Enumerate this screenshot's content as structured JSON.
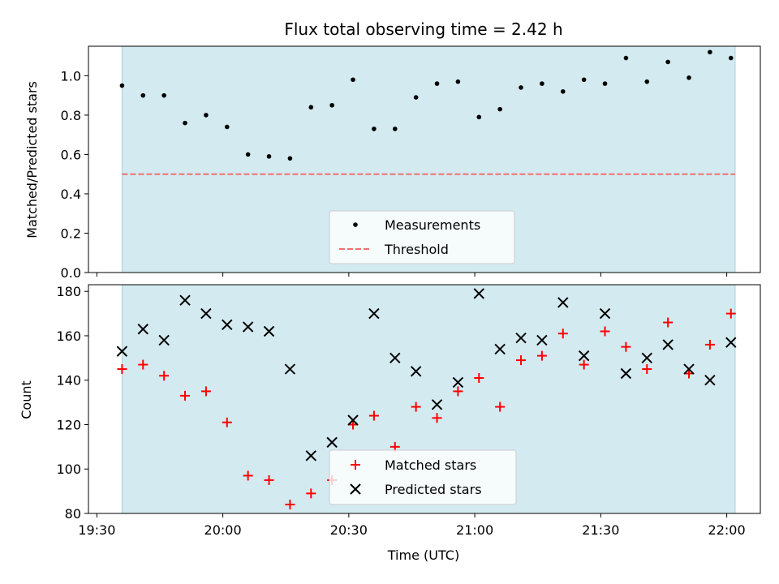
{
  "chart_data": [
    {
      "type": "scatter",
      "panel": "top",
      "title": "Flux total observing time = 2.42 h",
      "ylabel": "Matched/Predicted stars",
      "ylim": [
        0,
        1.15
      ],
      "yticks": [
        "0.0",
        "0.2",
        "0.4",
        "0.6",
        "0.8",
        "1.0"
      ],
      "shaded_x_range": [
        "19:36",
        "22:02"
      ],
      "shade_color": "#d3eaf0",
      "threshold": {
        "name": "Threshold",
        "value": 0.5,
        "color": "#f07070"
      },
      "legend_placement": "lower-center",
      "series": [
        {
          "name": "Measurements",
          "color": "#000000",
          "marker": "dot",
          "x": [
            "19:36",
            "19:41",
            "19:46",
            "19:51",
            "19:56",
            "20:01",
            "20:06",
            "20:11",
            "20:16",
            "20:21",
            "20:26",
            "20:31",
            "20:36",
            "20:41",
            "20:46",
            "20:51",
            "20:56",
            "21:01",
            "21:06",
            "21:11",
            "21:16",
            "21:21",
            "21:26",
            "21:31",
            "21:36",
            "21:41",
            "21:46",
            "21:51",
            "21:56",
            "22:01"
          ],
          "y": [
            0.95,
            0.9,
            0.9,
            0.76,
            0.8,
            0.74,
            0.6,
            0.59,
            0.58,
            0.84,
            0.85,
            0.98,
            0.73,
            0.73,
            0.89,
            0.96,
            0.97,
            0.79,
            0.83,
            0.94,
            0.96,
            0.92,
            0.98,
            0.96,
            1.09,
            0.97,
            1.07,
            0.99,
            1.12,
            1.09
          ]
        }
      ]
    },
    {
      "type": "scatter",
      "panel": "bottom",
      "xlabel": "Time (UTC)",
      "ylabel": "Count",
      "ylim": [
        80,
        183
      ],
      "yticks": [
        "80",
        "100",
        "120",
        "140",
        "160",
        "180"
      ],
      "xticks": [
        "19:30",
        "20:00",
        "20:30",
        "21:00",
        "21:30",
        "22:00"
      ],
      "xlim": [
        "19:28",
        "22:08"
      ],
      "shaded_x_range": [
        "19:36",
        "22:02"
      ],
      "legend_placement": "lower-center",
      "series": [
        {
          "name": "Matched stars",
          "color": "#ff0000",
          "marker": "plus",
          "x": [
            "19:36",
            "19:41",
            "19:46",
            "19:51",
            "19:56",
            "20:01",
            "20:06",
            "20:11",
            "20:16",
            "20:21",
            "20:26",
            "20:31",
            "20:36",
            "20:41",
            "20:46",
            "20:51",
            "20:56",
            "21:01",
            "21:06",
            "21:11",
            "21:16",
            "21:21",
            "21:26",
            "21:31",
            "21:36",
            "21:41",
            "21:46",
            "21:51",
            "21:56",
            "22:01"
          ],
          "y": [
            145,
            147,
            142,
            133,
            135,
            121,
            97,
            95,
            84,
            89,
            95,
            120,
            124,
            110,
            128,
            123,
            135,
            141,
            128,
            149,
            151,
            161,
            147,
            162,
            155,
            145,
            166,
            143,
            156,
            170
          ]
        },
        {
          "name": "Predicted stars",
          "color": "#000000",
          "marker": "x",
          "x": [
            "19:36",
            "19:41",
            "19:46",
            "19:51",
            "19:56",
            "20:01",
            "20:06",
            "20:11",
            "20:16",
            "20:21",
            "20:26",
            "20:31",
            "20:36",
            "20:41",
            "20:46",
            "20:51",
            "20:56",
            "21:01",
            "21:06",
            "21:11",
            "21:16",
            "21:21",
            "21:26",
            "21:31",
            "21:36",
            "21:41",
            "21:46",
            "21:51",
            "21:56",
            "22:01"
          ],
          "y": [
            153,
            163,
            158,
            176,
            170,
            165,
            164,
            162,
            145,
            106,
            112,
            122,
            170,
            150,
            144,
            129,
            139,
            179,
            154,
            159,
            158,
            175,
            151,
            170,
            143,
            150,
            156,
            145,
            140,
            157
          ]
        }
      ]
    }
  ]
}
